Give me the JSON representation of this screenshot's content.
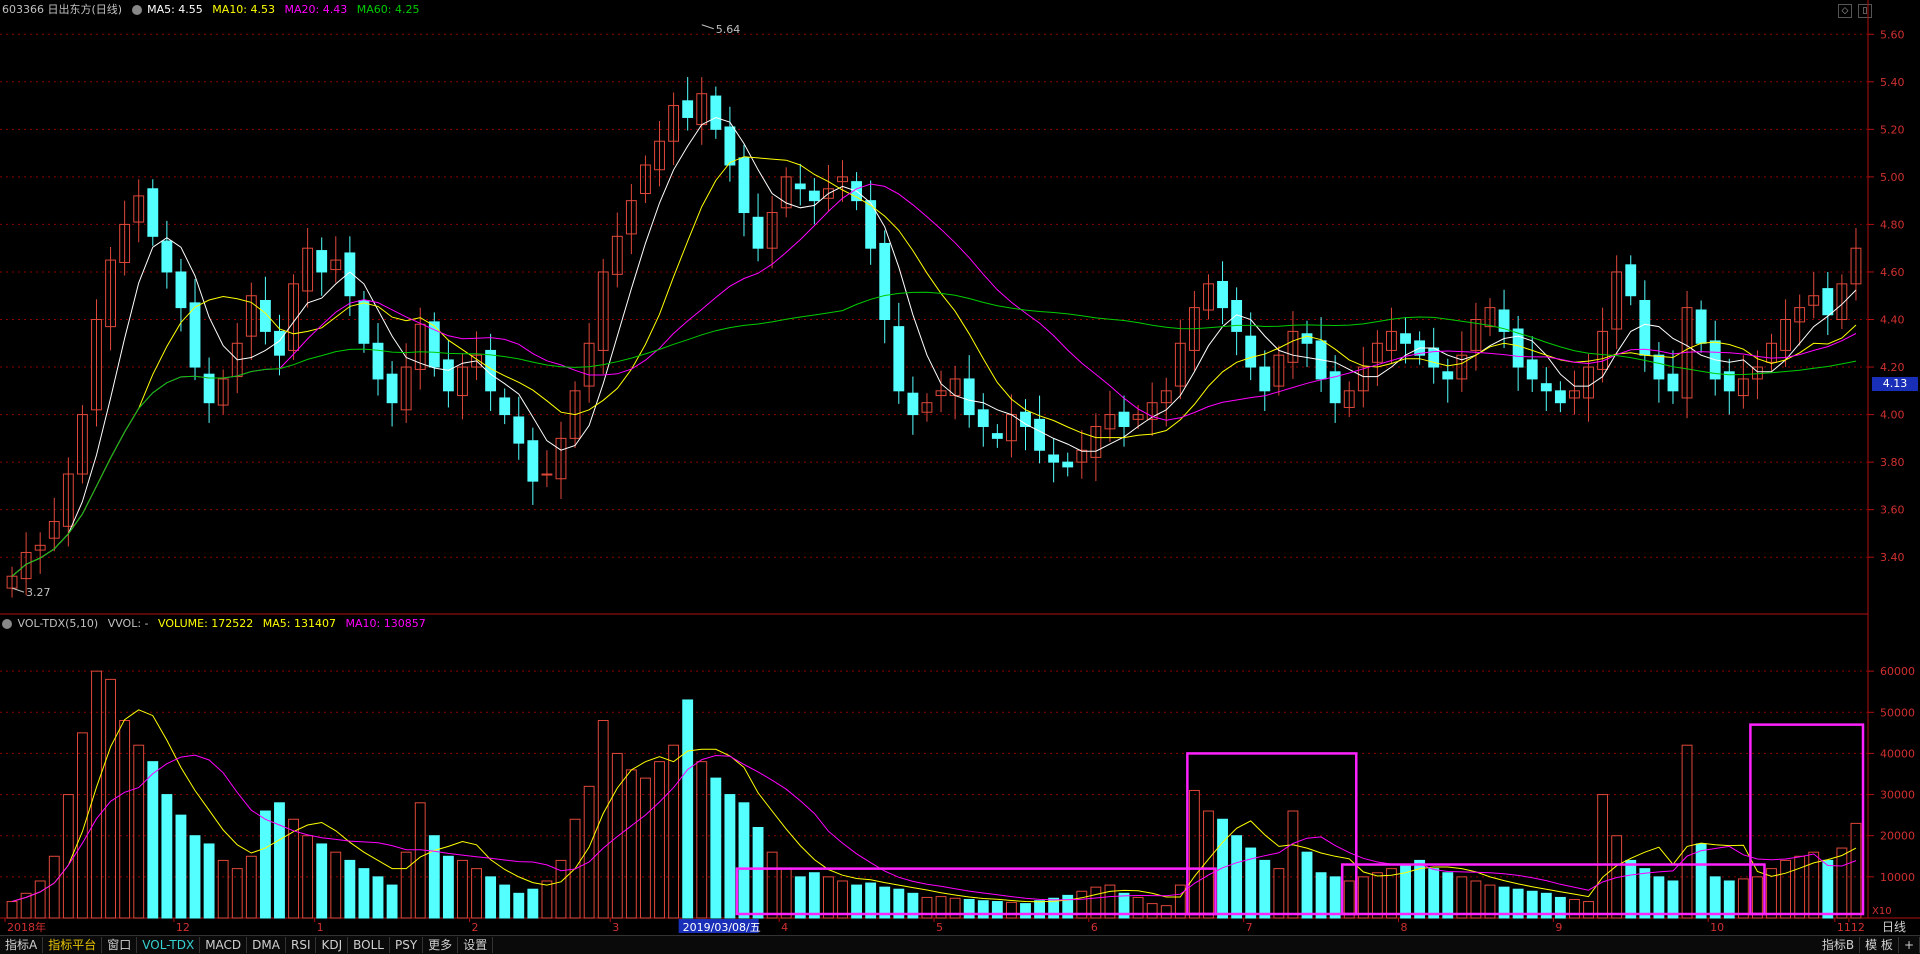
{
  "price_header": {
    "title": "603366 日出东方(日线)",
    "ma5": "MA5: 4.55",
    "ma10": "MA10: 4.53",
    "ma20": "MA20: 4.43",
    "ma60": "MA60: 4.25"
  },
  "volume_header": {
    "indicator": "VOL-TDX(5,10)",
    "vvol": "VVOL: -",
    "volume": "VOLUME: 172522",
    "ma5": "MA5: 131407",
    "ma10": "MA10: 130857"
  },
  "price_axis": [
    "5.60",
    "5.40",
    "5.20",
    "5.00",
    "4.80",
    "4.60",
    "4.40",
    "4.20",
    "4.00",
    "3.80",
    "3.60",
    "3.40"
  ],
  "price_marker": "4.13",
  "high_label": "5.64",
  "low_label": "3.27",
  "volume_axis": [
    "60000",
    "50000",
    "40000",
    "30000",
    "20000",
    "10000"
  ],
  "volume_unit": "X10",
  "date_axis": [
    "2018年",
    "12",
    "1",
    "2",
    "3",
    "2019/03/08/五",
    "4",
    "5",
    "6",
    "7",
    "8",
    "9",
    "10",
    "11",
    "12"
  ],
  "period_label": "日线",
  "bottom_tabs_left": [
    "指标A",
    "指标平台",
    "窗口",
    "VOL-TDX",
    "MACD",
    "DMA",
    "RSI",
    "KDJ",
    "BOLL",
    "PSY",
    "更多",
    "设置"
  ],
  "selected_tab": "VOL-TDX",
  "bottom_tabs_right": [
    "指标B",
    "模 板",
    "+"
  ],
  "colors": {
    "up": "#e0483a",
    "down": "#54ffff",
    "ma5": "#ffffff",
    "ma10": "#ffff00",
    "ma20": "#ff00ff",
    "ma60": "#00cc00",
    "highlight_box": "#ff22ff",
    "grid": "#8b0000"
  },
  "chart_data": [
    {
      "type": "candlestick",
      "title": "603366 日出东方(日线)",
      "ylim": [
        3.22,
        5.66
      ],
      "y_ticks": [
        5.6,
        5.4,
        5.2,
        5.0,
        4.8,
        4.6,
        4.4,
        4.2,
        4.0,
        3.8,
        3.6,
        3.4
      ],
      "x_ticks": [
        "2018年",
        "12",
        "1",
        "2",
        "3",
        "2019/03/08/五",
        "4",
        "5",
        "6",
        "7",
        "8",
        "9",
        "10",
        "11",
        "12"
      ],
      "annotations": [
        {
          "label": "5.64",
          "value": 5.64
        },
        {
          "label": "3.27",
          "value": 3.27
        }
      ],
      "series_close": [
        3.32,
        3.42,
        3.45,
        3.55,
        3.75,
        4.0,
        4.4,
        4.65,
        4.8,
        4.92,
        4.75,
        4.6,
        4.45,
        4.2,
        4.05,
        4.15,
        4.3,
        4.5,
        4.35,
        4.25,
        4.55,
        4.7,
        4.6,
        4.65,
        4.5,
        4.3,
        4.15,
        4.05,
        4.2,
        4.38,
        4.2,
        4.1,
        4.2,
        4.25,
        4.1,
        4.0,
        3.88,
        3.72,
        3.75,
        3.9,
        4.1,
        4.3,
        4.6,
        4.75,
        4.9,
        5.05,
        5.15,
        5.3,
        5.25,
        5.35,
        5.2,
        5.05,
        4.85,
        4.7,
        4.85,
        5.0,
        4.95,
        4.9,
        4.95,
        5.0,
        4.9,
        4.7,
        4.4,
        4.1,
        4.0,
        4.05,
        4.1,
        4.15,
        4.0,
        3.95,
        3.9,
        4.0,
        3.95,
        3.85,
        3.8,
        3.78,
        3.85,
        3.95,
        4.0,
        3.95,
        4.0,
        4.05,
        4.1,
        4.3,
        4.45,
        4.55,
        4.45,
        4.35,
        4.2,
        4.1,
        4.25,
        4.35,
        4.3,
        4.15,
        4.05,
        4.1,
        4.2,
        4.3,
        4.35,
        4.3,
        4.25,
        4.2,
        4.15,
        4.25,
        4.4,
        4.45,
        4.35,
        4.2,
        4.15,
        4.1,
        4.05,
        4.1,
        4.2,
        4.35,
        4.6,
        4.5,
        4.25,
        4.15,
        4.1,
        4.45,
        4.3,
        4.15,
        4.1,
        4.15,
        4.2,
        4.3,
        4.4,
        4.45,
        4.5,
        4.42,
        4.55,
        4.7
      ]
    },
    {
      "type": "bar",
      "title": "VOL-TDX(5,10)",
      "ylim": [
        0,
        70000
      ],
      "y_ticks": [
        60000,
        50000,
        40000,
        30000,
        20000,
        10000
      ],
      "series_volume": [
        4000,
        6000,
        9000,
        15000,
        30000,
        45000,
        60000,
        58000,
        48000,
        42000,
        38000,
        30000,
        25000,
        20000,
        18000,
        14000,
        12000,
        15000,
        26000,
        28000,
        24000,
        20000,
        18000,
        16000,
        14000,
        12000,
        10000,
        8000,
        16000,
        28000,
        20000,
        15000,
        14000,
        12000,
        10000,
        8000,
        6000,
        7000,
        9000,
        14000,
        24000,
        32000,
        48000,
        40000,
        36000,
        34000,
        38000,
        42000,
        53000,
        38000,
        34000,
        30000,
        28000,
        22000,
        16000,
        12000,
        10000,
        11000,
        10000,
        9000,
        8000,
        8500,
        7500,
        7000,
        6000,
        5000,
        5200,
        4800,
        4500,
        4200,
        4000,
        3800,
        3500,
        4200,
        4800,
        5500,
        6500,
        7500,
        8000,
        6000,
        5000,
        3500,
        3000,
        8000,
        31000,
        26000,
        24000,
        20000,
        17000,
        14000,
        12000,
        26000,
        16000,
        11000,
        10000,
        9000,
        10000,
        11000,
        12000,
        13000,
        14000,
        12000,
        11000,
        10000,
        9000,
        8000,
        7500,
        7000,
        6500,
        6000,
        5000,
        4500,
        4000,
        30000,
        20000,
        14000,
        12000,
        10000,
        9000,
        42000,
        18000,
        10000,
        9000,
        9500,
        10000,
        12000,
        14000,
        15000,
        16000,
        14000,
        17000,
        23000
      ],
      "series": [
        {
          "name": "MA5",
          "value": 131407
        },
        {
          "name": "MA10",
          "value": 130857
        }
      ]
    }
  ]
}
